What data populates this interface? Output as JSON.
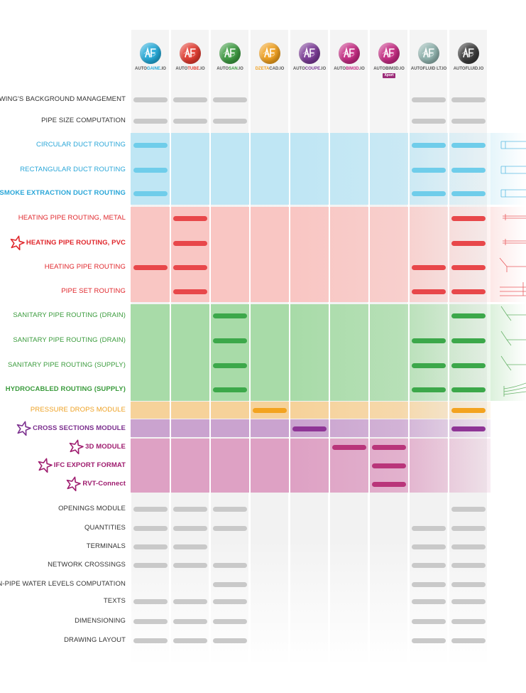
{
  "products": [
    {
      "prefix": "AUTO",
      "suffix": "GAINE",
      "ext": ".IO",
      "color": "#22a9d8",
      "suffix_color": "#22a9d8"
    },
    {
      "prefix": "AUTO",
      "suffix": "TUBE",
      "ext": ".IO",
      "color": "#e23a2f",
      "suffix_color": "#e23a2f"
    },
    {
      "prefix": "AUTO",
      "suffix": "SAN",
      "ext": ".IO",
      "color": "#3c9a40",
      "suffix_color": "#3c9a40"
    },
    {
      "prefix": "",
      "suffix": "DZETA",
      "ext": "CAD.IO",
      "color": "#f0a01e",
      "suffix_color": "#f0a01e"
    },
    {
      "prefix": "AUTO",
      "suffix": "COUPE",
      "ext": ".IO",
      "color": "#7a3a96",
      "suffix_color": "#7a3a96"
    },
    {
      "prefix": "AUTO",
      "suffix": "BIM3D",
      "ext": ".IO",
      "color": "#c52a82",
      "suffix_color": "#c52a82"
    },
    {
      "prefix": "AUTO",
      "suffix": "BIM3D",
      "ext": ".IO",
      "color": "#c52a82",
      "suffix_color": "#555555",
      "badge": "Xport"
    },
    {
      "prefix": "AUTO",
      "suffix": "FLUID",
      "ext": " LT.IO",
      "color": "#8fb2ad",
      "suffix_color": "#555555"
    },
    {
      "prefix": "AUTO",
      "suffix": "FLUID",
      "ext": ".IO",
      "color": "#3a3a3a",
      "suffix_color": "#555555"
    }
  ],
  "logo_glyph": "AF",
  "features": [
    {
      "label": "DRAWING'S BACKGROUND MANAGEMENT",
      "group": "gray",
      "marks": [
        1,
        1,
        1,
        0,
        0,
        0,
        0,
        1,
        1
      ]
    },
    {
      "label": "PIPE SIZE COMPUTATION",
      "group": "gray",
      "marks": [
        1,
        1,
        1,
        0,
        0,
        0,
        0,
        1,
        1
      ]
    },
    {
      "label": "CIRCULAR DUCT ROUTING",
      "group": "blue",
      "marks": [
        1,
        0,
        0,
        0,
        0,
        0,
        0,
        1,
        1
      ]
    },
    {
      "label": "RECTANGULAR DUCT ROUTING",
      "group": "blue",
      "marks": [
        1,
        0,
        0,
        0,
        0,
        0,
        0,
        1,
        1
      ]
    },
    {
      "label": "SMOKE EXTRACTION DUCT ROUTING",
      "group": "blue",
      "bold": true,
      "marks": [
        1,
        0,
        0,
        0,
        0,
        0,
        0,
        1,
        1
      ]
    },
    {
      "label": "HEATING PIPE ROUTING, METAL",
      "group": "red",
      "marks": [
        0,
        1,
        0,
        0,
        0,
        0,
        0,
        0,
        1
      ]
    },
    {
      "label": "HEATING PIPE ROUTING, PVC",
      "group": "red",
      "bold": true,
      "star": true,
      "marks": [
        0,
        1,
        0,
        0,
        0,
        0,
        0,
        0,
        1
      ]
    },
    {
      "label": "HEATING PIPE ROUTING",
      "group": "red",
      "marks": [
        1,
        1,
        0,
        0,
        0,
        0,
        0,
        1,
        1
      ]
    },
    {
      "label": "PIPE SET ROUTING",
      "group": "red",
      "marks": [
        0,
        1,
        0,
        0,
        0,
        0,
        0,
        1,
        1
      ]
    },
    {
      "label": "SANITARY PIPE  ROUTING (DRAIN)",
      "group": "green",
      "marks": [
        0,
        0,
        1,
        0,
        0,
        0,
        0,
        0,
        1
      ]
    },
    {
      "label": "SANITARY PIPE  ROUTING (DRAIN)",
      "group": "green",
      "marks": [
        0,
        0,
        1,
        0,
        0,
        0,
        0,
        1,
        1
      ]
    },
    {
      "label": "SANITARY PIPE  ROUTING (SUPPLY)",
      "group": "green",
      "marks": [
        0,
        0,
        1,
        0,
        0,
        0,
        0,
        1,
        1
      ]
    },
    {
      "label": "HYDROCABLED ROUTING (SUPPLY)",
      "group": "green",
      "bold": true,
      "marks": [
        0,
        0,
        1,
        0,
        0,
        0,
        0,
        1,
        1
      ]
    },
    {
      "label": "PRESSURE DROPS MODULE",
      "group": "orange",
      "marks": [
        0,
        0,
        0,
        1,
        0,
        0,
        0,
        0,
        1
      ]
    },
    {
      "label": "CROSS SECTIONS MODULE",
      "group": "purple",
      "bold": true,
      "star": true,
      "marks": [
        0,
        0,
        0,
        0,
        1,
        0,
        0,
        0,
        1
      ]
    },
    {
      "label": "3D MODULE",
      "group": "pink",
      "bold": true,
      "star": true,
      "marks": [
        0,
        0,
        0,
        0,
        0,
        1,
        1,
        0,
        0
      ]
    },
    {
      "label": "IFC EXPORT FORMAT",
      "group": "pink",
      "bold": true,
      "star": true,
      "marks": [
        0,
        0,
        0,
        0,
        0,
        0,
        1,
        0,
        0
      ]
    },
    {
      "label": "RVT-Connect",
      "group": "pink",
      "bold": true,
      "star": true,
      "marks": [
        0,
        0,
        0,
        0,
        0,
        0,
        1,
        0,
        0
      ]
    },
    {
      "label": "OPENINGS MODULE",
      "group": "gray",
      "marks": [
        1,
        1,
        1,
        0,
        0,
        0,
        0,
        0,
        1
      ]
    },
    {
      "label": "QUANTITIES",
      "group": "gray",
      "marks": [
        1,
        1,
        1,
        0,
        0,
        0,
        0,
        1,
        1
      ]
    },
    {
      "label": "TERMINALS",
      "group": "gray",
      "marks": [
        1,
        1,
        0,
        0,
        0,
        0,
        0,
        1,
        1
      ]
    },
    {
      "label": "NETWORK CROSSINGS",
      "group": "gray",
      "marks": [
        1,
        1,
        1,
        0,
        0,
        0,
        0,
        1,
        1
      ]
    },
    {
      "label": "IN-PIPE WATER LEVELS COMPUTATION",
      "group": "gray",
      "marks": [
        0,
        0,
        1,
        0,
        0,
        0,
        0,
        1,
        1
      ]
    },
    {
      "label": "TEXTS",
      "group": "gray",
      "marks": [
        1,
        1,
        1,
        0,
        0,
        0,
        0,
        1,
        1
      ]
    },
    {
      "label": "DIMENSIONING",
      "group": "gray",
      "marks": [
        1,
        1,
        1,
        0,
        0,
        0,
        0,
        1,
        1
      ]
    },
    {
      "label": "DRAWING LAYOUT",
      "group": "gray",
      "marks": [
        1,
        1,
        1,
        0,
        0,
        0,
        0,
        1,
        1
      ]
    }
  ],
  "group_colors": {
    "gray": {
      "text": "#333333",
      "bar": "#c9c9c9"
    },
    "blue": {
      "text": "#29a6d8",
      "bar": "#6fcdea",
      "bg": "#bfe6f4"
    },
    "red": {
      "text": "#e0262b",
      "bar": "#e8474a",
      "bg": "#f9c6c3"
    },
    "green": {
      "text": "#3a9b3c",
      "bar": "#3ca84a",
      "bg": "#a8dba8"
    },
    "orange": {
      "text": "#eea021",
      "bar": "#f3a31f",
      "bg": "#f6d29a"
    },
    "purple": {
      "text": "#7b2f8e",
      "bar": "#8e3596",
      "bg": "#caa3cf"
    },
    "pink": {
      "text": "#9e1b6e",
      "bar": "#b9357a",
      "bg": "#dea1c4"
    }
  }
}
